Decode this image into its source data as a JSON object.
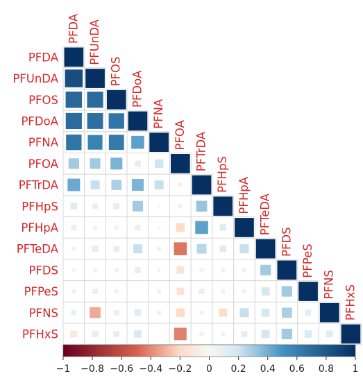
{
  "chart_data": {
    "type": "heatmap",
    "subtype": "correlation-matrix-lower-triangle",
    "variables": [
      "PFDA",
      "PFUnDA",
      "PFOS",
      "PFDoA",
      "PFNA",
      "PFOA",
      "PFTrDA",
      "PFHpS",
      "PFHpA",
      "PFTeDA",
      "PFDS",
      "PFPeS",
      "PFNS",
      "PFHxS"
    ],
    "matrix": [
      [
        1
      ],
      [
        0.85,
        1
      ],
      [
        0.72,
        0.7,
        1
      ],
      [
        0.7,
        0.68,
        0.65,
        1
      ],
      [
        0.65,
        0.58,
        0.62,
        0.45,
        1
      ],
      [
        0.3,
        0.3,
        0.38,
        0.1,
        0.2,
        1
      ],
      [
        0.42,
        0.22,
        0.28,
        0.38,
        0.22,
        -0.05,
        1
      ],
      [
        0.12,
        0.08,
        0.1,
        0.3,
        0.02,
        0.05,
        0.32,
        1
      ],
      [
        0.08,
        -0.05,
        0.05,
        0.08,
        0.02,
        -0.2,
        0.45,
        0.12,
        1
      ],
      [
        0.05,
        0.1,
        0.1,
        0.22,
        0.05,
        -0.45,
        0.25,
        0.12,
        0.22,
        1
      ],
      [
        0.03,
        0.05,
        0.05,
        0.1,
        0.03,
        -0.15,
        0.05,
        0.05,
        0.05,
        0.3,
        1
      ],
      [
        0.05,
        0.08,
        0.05,
        0.0,
        0.05,
        -0.15,
        0.08,
        0.05,
        0.05,
        0.18,
        0.3,
        1
      ],
      [
        0.08,
        -0.32,
        -0.08,
        0.12,
        0.05,
        -0.2,
        0.05,
        -0.18,
        0.22,
        0.18,
        0.28,
        0.1,
        1
      ],
      [
        -0.12,
        0.1,
        0.1,
        0.15,
        0.0,
        -0.42,
        0.05,
        0.05,
        0.1,
        0.18,
        0.3,
        0.15,
        0.12,
        1
      ]
    ],
    "colorbar": {
      "ticks": [
        "−1",
        "−0.8",
        "−0.6",
        "−0.4",
        "−0.2",
        "0",
        "0.2",
        "0.4",
        "0.6",
        "0.8",
        "1"
      ],
      "range": [
        -1,
        1
      ],
      "colors": {
        "neg_strong": "#67001f",
        "neg_mid": "#d6604d",
        "neg_light": "#fddbc7",
        "zero": "#f7f7f7",
        "pos_light": "#d1e5f0",
        "pos_mid": "#4393c3",
        "pos_strong": "#053061"
      }
    },
    "label_color": "#d62728",
    "title": "",
    "xlabel": "",
    "ylabel": ""
  }
}
